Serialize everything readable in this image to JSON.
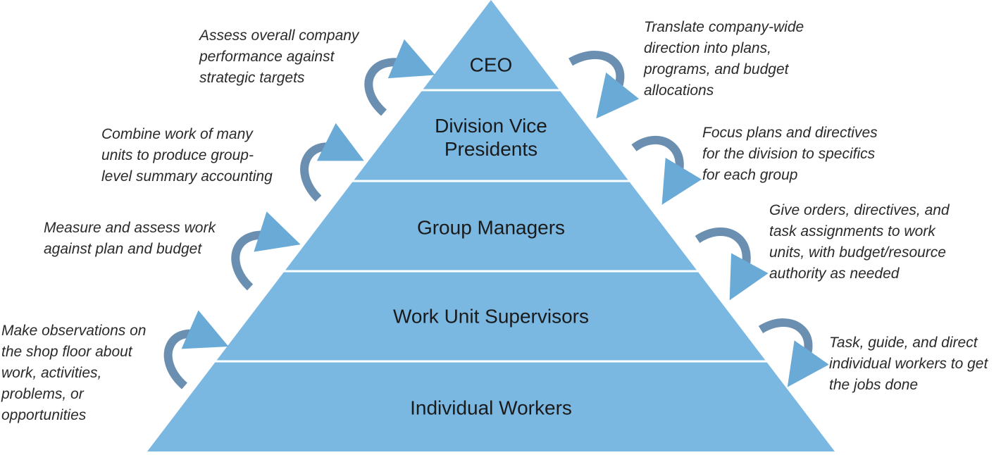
{
  "accent": "#7ab8e2",
  "arrow_dark": "#6a8fb0",
  "arrow_light": "#7ab8e2",
  "levels": [
    {
      "id": "ceo",
      "label": "CEO"
    },
    {
      "id": "division-vice-presidents",
      "label": "Division Vice Presidents"
    },
    {
      "id": "group-managers",
      "label": "Group Managers"
    },
    {
      "id": "work-unit-supervisors",
      "label": "Work Unit Supervisors"
    },
    {
      "id": "individual-workers",
      "label": "Individual Workers"
    }
  ],
  "upward_notes": [
    {
      "lines": [
        "Assess overall company",
        "performance against",
        "strategic targets"
      ]
    },
    {
      "lines": [
        "Combine work of many",
        "units to produce group-",
        "level summary accounting"
      ]
    },
    {
      "lines": [
        "Measure and assess work",
        "against plan and budget"
      ]
    },
    {
      "lines": [
        "Make observations on",
        "the shop floor about",
        "work, activities,",
        "problems, or",
        "opportunities"
      ]
    }
  ],
  "downward_notes": [
    {
      "lines": [
        "Translate company-wide",
        "direction into plans,",
        "programs, and budget",
        "allocations"
      ]
    },
    {
      "lines": [
        "Focus plans and directives",
        "for the division to specifics",
        "for each group"
      ]
    },
    {
      "lines": [
        "Give orders, directives, and",
        "task assignments to work",
        "units, with budget/resource",
        "authority as needed"
      ]
    },
    {
      "lines": [
        "Task, guide, and direct",
        "individual workers to get",
        "the jobs done"
      ]
    }
  ]
}
